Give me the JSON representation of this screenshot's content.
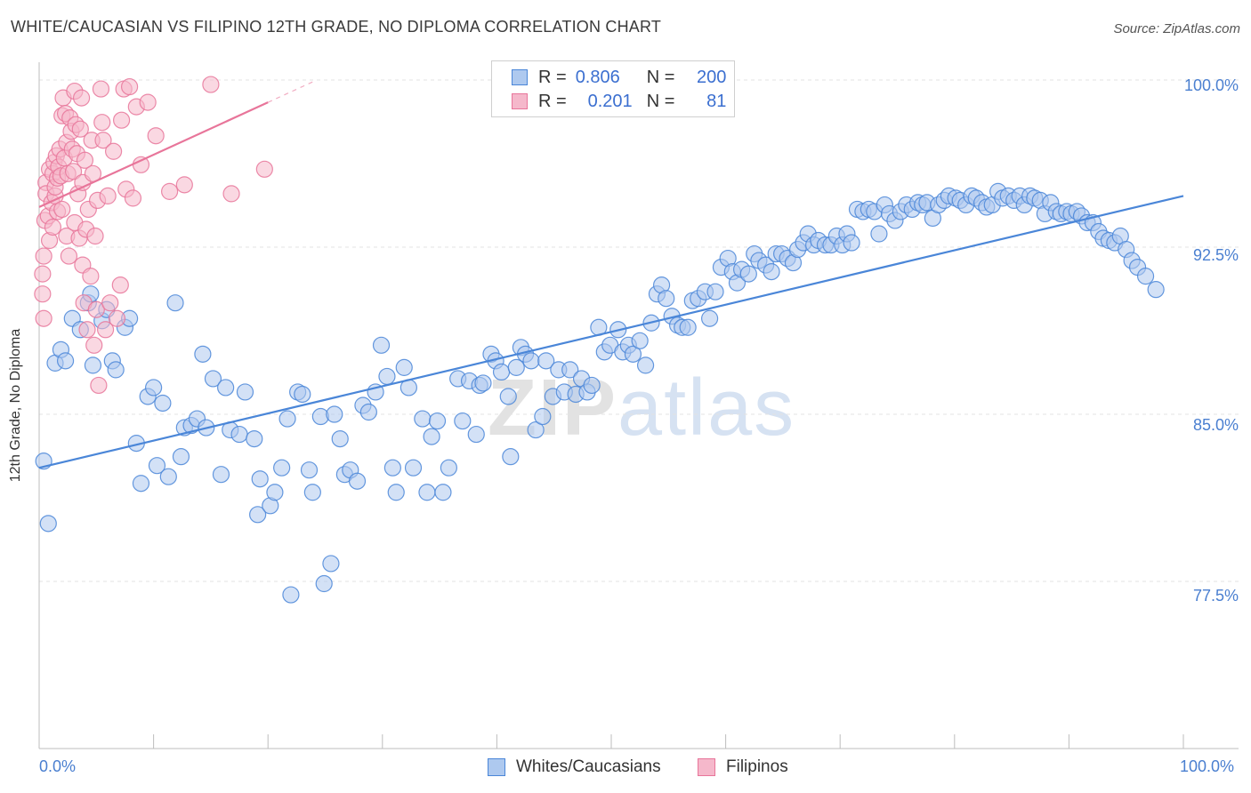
{
  "title": "WHITE/CAUCASIAN VS FILIPINO 12TH GRADE, NO DIPLOMA CORRELATION CHART",
  "source": "Source: ZipAtlas.com",
  "watermark": {
    "zip": "ZIP",
    "atlas": "atlas"
  },
  "legend": {
    "rows": [
      {
        "r_label": "R =",
        "r_value": "0.806",
        "n_label": "N =",
        "n_value": "200"
      },
      {
        "r_label": "R =",
        "r_value": "0.201",
        "n_label": "N =",
        "n_value": "81"
      }
    ]
  },
  "bottom_legend": {
    "white": "Whites/Caucasians",
    "filipino": "Filipinos"
  },
  "colors": {
    "blue": "#4a86d8",
    "blue_fill": "#aec9ef",
    "pink": "#e8759a",
    "pink_fill": "#f5b8cb",
    "grid": "#e3e3e3",
    "tick_text": "#4a7fd0"
  },
  "chart_data": {
    "type": "scatter",
    "title": "WHITE/CAUCASIAN VS FILIPINO 12TH GRADE, NO DIPLOMA CORRELATION CHART",
    "xlabel": "",
    "ylabel": "12th Grade, No Diploma",
    "xlim": [
      0,
      100
    ],
    "ylim": [
      70.0,
      100.8
    ],
    "x_tick_labels": [
      "0.0%",
      "100.0%"
    ],
    "y_ticks": [
      77.5,
      85.0,
      92.5,
      100.0
    ],
    "y_tick_labels": [
      "77.5%",
      "85.0%",
      "92.5%",
      "100.0%"
    ],
    "grid": true,
    "series": [
      {
        "name": "Whites/Caucasians",
        "color": "#4a86d8",
        "trend": {
          "x": [
            0,
            100
          ],
          "y": [
            82.6,
            94.8
          ]
        },
        "points": [
          [
            0.4,
            82.9
          ],
          [
            0.8,
            80.1
          ],
          [
            1.4,
            87.3
          ],
          [
            1.9,
            87.9
          ],
          [
            2.3,
            87.4
          ],
          [
            2.9,
            89.3
          ],
          [
            3.6,
            88.8
          ],
          [
            4.3,
            90.0
          ],
          [
            4.5,
            90.4
          ],
          [
            4.7,
            87.2
          ],
          [
            5.5,
            89.2
          ],
          [
            5.9,
            89.7
          ],
          [
            6.4,
            87.4
          ],
          [
            6.7,
            87.0
          ],
          [
            7.5,
            88.9
          ],
          [
            7.9,
            89.3
          ],
          [
            8.5,
            83.7
          ],
          [
            8.9,
            81.9
          ],
          [
            9.5,
            85.8
          ],
          [
            10.0,
            86.2
          ],
          [
            10.3,
            82.7
          ],
          [
            10.8,
            85.5
          ],
          [
            11.3,
            82.2
          ],
          [
            11.9,
            90.0
          ],
          [
            12.4,
            83.1
          ],
          [
            12.7,
            84.4
          ],
          [
            13.3,
            84.5
          ],
          [
            13.8,
            84.8
          ],
          [
            14.6,
            84.4
          ],
          [
            14.3,
            87.7
          ],
          [
            15.2,
            86.6
          ],
          [
            15.9,
            82.3
          ],
          [
            16.3,
            86.2
          ],
          [
            16.7,
            84.3
          ],
          [
            17.5,
            84.1
          ],
          [
            18.0,
            86.0
          ],
          [
            18.8,
            83.9
          ],
          [
            19.1,
            80.5
          ],
          [
            19.3,
            82.1
          ],
          [
            20.2,
            80.9
          ],
          [
            20.6,
            81.5
          ],
          [
            21.2,
            82.6
          ],
          [
            21.7,
            84.8
          ],
          [
            22.0,
            76.9
          ],
          [
            22.6,
            86.0
          ],
          [
            23.0,
            85.9
          ],
          [
            23.6,
            82.5
          ],
          [
            23.9,
            81.5
          ],
          [
            24.6,
            84.9
          ],
          [
            24.9,
            77.4
          ],
          [
            25.5,
            78.3
          ],
          [
            25.8,
            85.0
          ],
          [
            26.3,
            83.9
          ],
          [
            26.7,
            82.3
          ],
          [
            27.2,
            82.5
          ],
          [
            27.8,
            82.0
          ],
          [
            28.3,
            85.4
          ],
          [
            28.8,
            85.1
          ],
          [
            29.4,
            86.0
          ],
          [
            29.9,
            88.1
          ],
          [
            30.4,
            86.7
          ],
          [
            30.9,
            82.6
          ],
          [
            31.2,
            81.5
          ],
          [
            31.9,
            87.1
          ],
          [
            32.3,
            86.2
          ],
          [
            32.7,
            82.6
          ],
          [
            33.5,
            84.8
          ],
          [
            33.9,
            81.5
          ],
          [
            34.3,
            84.0
          ],
          [
            34.8,
            84.7
          ],
          [
            35.3,
            81.5
          ],
          [
            35.8,
            82.6
          ],
          [
            36.6,
            86.6
          ],
          [
            37.0,
            84.7
          ],
          [
            37.6,
            86.5
          ],
          [
            38.2,
            84.1
          ],
          [
            38.5,
            86.3
          ],
          [
            38.8,
            86.4
          ],
          [
            39.5,
            87.7
          ],
          [
            39.9,
            87.4
          ],
          [
            40.4,
            86.9
          ],
          [
            41.0,
            85.8
          ],
          [
            41.2,
            83.1
          ],
          [
            41.7,
            87.1
          ],
          [
            42.1,
            88.0
          ],
          [
            42.5,
            87.7
          ],
          [
            43.0,
            87.4
          ],
          [
            43.4,
            84.3
          ],
          [
            44.0,
            84.9
          ],
          [
            44.3,
            87.4
          ],
          [
            44.9,
            85.8
          ],
          [
            45.4,
            87.0
          ],
          [
            45.9,
            86.0
          ],
          [
            46.4,
            87.0
          ],
          [
            46.9,
            85.9
          ],
          [
            47.4,
            86.6
          ],
          [
            47.9,
            86.0
          ],
          [
            48.3,
            86.3
          ],
          [
            48.9,
            88.9
          ],
          [
            49.4,
            87.8
          ],
          [
            49.9,
            88.1
          ],
          [
            50.6,
            88.8
          ],
          [
            51.0,
            87.8
          ],
          [
            51.5,
            88.1
          ],
          [
            51.9,
            87.7
          ],
          [
            52.5,
            88.3
          ],
          [
            53.0,
            87.2
          ],
          [
            53.5,
            89.1
          ],
          [
            54.0,
            90.4
          ],
          [
            54.4,
            90.8
          ],
          [
            54.8,
            90.2
          ],
          [
            55.3,
            89.4
          ],
          [
            55.8,
            89.0
          ],
          [
            56.2,
            88.9
          ],
          [
            56.7,
            88.9
          ],
          [
            57.1,
            90.1
          ],
          [
            57.6,
            90.2
          ],
          [
            58.2,
            90.5
          ],
          [
            58.6,
            89.3
          ],
          [
            59.1,
            90.5
          ],
          [
            59.6,
            91.6
          ],
          [
            60.2,
            92.0
          ],
          [
            60.6,
            91.4
          ],
          [
            61.0,
            90.9
          ],
          [
            61.4,
            91.5
          ],
          [
            62.0,
            91.3
          ],
          [
            62.5,
            92.2
          ],
          [
            62.9,
            91.9
          ],
          [
            63.5,
            91.7
          ],
          [
            64.0,
            91.4
          ],
          [
            64.4,
            92.2
          ],
          [
            64.9,
            92.2
          ],
          [
            65.4,
            92.0
          ],
          [
            65.9,
            91.8
          ],
          [
            66.3,
            92.4
          ],
          [
            66.8,
            92.7
          ],
          [
            67.2,
            93.1
          ],
          [
            67.7,
            92.6
          ],
          [
            68.1,
            92.8
          ],
          [
            68.7,
            92.6
          ],
          [
            69.2,
            92.6
          ],
          [
            69.7,
            93.0
          ],
          [
            70.2,
            92.6
          ],
          [
            70.6,
            93.1
          ],
          [
            71.0,
            92.7
          ],
          [
            71.5,
            94.2
          ],
          [
            72.0,
            94.1
          ],
          [
            72.5,
            94.2
          ],
          [
            73.0,
            94.1
          ],
          [
            73.4,
            93.1
          ],
          [
            73.9,
            94.4
          ],
          [
            74.3,
            94.0
          ],
          [
            74.8,
            93.7
          ],
          [
            75.3,
            94.1
          ],
          [
            75.8,
            94.4
          ],
          [
            76.3,
            94.2
          ],
          [
            76.8,
            94.5
          ],
          [
            77.2,
            94.4
          ],
          [
            77.6,
            94.5
          ],
          [
            78.1,
            93.8
          ],
          [
            78.6,
            94.4
          ],
          [
            79.1,
            94.6
          ],
          [
            79.5,
            94.8
          ],
          [
            80.1,
            94.7
          ],
          [
            80.5,
            94.6
          ],
          [
            81.0,
            94.4
          ],
          [
            81.5,
            94.8
          ],
          [
            81.9,
            94.7
          ],
          [
            82.4,
            94.5
          ],
          [
            82.8,
            94.3
          ],
          [
            83.3,
            94.4
          ],
          [
            83.8,
            95.0
          ],
          [
            84.2,
            94.7
          ],
          [
            84.7,
            94.8
          ],
          [
            85.2,
            94.6
          ],
          [
            85.7,
            94.8
          ],
          [
            86.1,
            94.4
          ],
          [
            86.6,
            94.8
          ],
          [
            87.0,
            94.7
          ],
          [
            87.5,
            94.6
          ],
          [
            87.9,
            94.0
          ],
          [
            88.4,
            94.5
          ],
          [
            88.9,
            94.1
          ],
          [
            89.3,
            94.0
          ],
          [
            89.8,
            94.1
          ],
          [
            90.2,
            94.0
          ],
          [
            90.7,
            94.1
          ],
          [
            91.1,
            93.9
          ],
          [
            91.6,
            93.6
          ],
          [
            92.1,
            93.6
          ],
          [
            92.6,
            93.2
          ],
          [
            93.0,
            92.9
          ],
          [
            93.5,
            92.8
          ],
          [
            94.0,
            92.7
          ],
          [
            94.5,
            93.0
          ],
          [
            95.0,
            92.4
          ],
          [
            95.5,
            91.9
          ],
          [
            96.0,
            91.6
          ],
          [
            96.7,
            91.2
          ],
          [
            97.6,
            90.6
          ]
        ]
      },
      {
        "name": "Filipinos",
        "color": "#e8759a",
        "trend": {
          "x": [
            0,
            20
          ],
          "y": [
            94.3,
            99.0
          ]
        },
        "points": [
          [
            0.3,
            90.4
          ],
          [
            0.3,
            91.3
          ],
          [
            0.4,
            89.3
          ],
          [
            0.4,
            92.1
          ],
          [
            0.5,
            93.7
          ],
          [
            0.6,
            95.4
          ],
          [
            0.6,
            94.9
          ],
          [
            0.8,
            93.9
          ],
          [
            0.9,
            96.0
          ],
          [
            0.9,
            92.8
          ],
          [
            1.1,
            94.5
          ],
          [
            1.2,
            93.4
          ],
          [
            1.2,
            95.8
          ],
          [
            1.3,
            96.3
          ],
          [
            1.4,
            94.8
          ],
          [
            1.4,
            95.2
          ],
          [
            1.5,
            96.6
          ],
          [
            1.6,
            94.1
          ],
          [
            1.6,
            95.6
          ],
          [
            1.7,
            96.1
          ],
          [
            1.8,
            96.9
          ],
          [
            1.9,
            95.7
          ],
          [
            2.0,
            94.2
          ],
          [
            2.0,
            98.4
          ],
          [
            2.1,
            99.2
          ],
          [
            2.2,
            96.5
          ],
          [
            2.3,
            98.5
          ],
          [
            2.4,
            93.0
          ],
          [
            2.4,
            97.2
          ],
          [
            2.5,
            95.8
          ],
          [
            2.6,
            92.1
          ],
          [
            2.7,
            98.3
          ],
          [
            2.8,
            97.7
          ],
          [
            2.9,
            96.9
          ],
          [
            3.0,
            95.9
          ],
          [
            3.1,
            93.6
          ],
          [
            3.1,
            99.5
          ],
          [
            3.2,
            98.0
          ],
          [
            3.3,
            96.7
          ],
          [
            3.4,
            94.9
          ],
          [
            3.5,
            92.9
          ],
          [
            3.6,
            97.8
          ],
          [
            3.7,
            99.2
          ],
          [
            3.8,
            95.4
          ],
          [
            3.8,
            91.7
          ],
          [
            3.9,
            90.0
          ],
          [
            4.0,
            96.4
          ],
          [
            4.1,
            93.3
          ],
          [
            4.2,
            88.8
          ],
          [
            4.3,
            94.2
          ],
          [
            4.5,
            91.2
          ],
          [
            4.6,
            97.3
          ],
          [
            4.7,
            95.8
          ],
          [
            4.8,
            88.1
          ],
          [
            4.9,
            93.0
          ],
          [
            5.0,
            89.7
          ],
          [
            5.1,
            94.6
          ],
          [
            5.2,
            86.3
          ],
          [
            5.4,
            99.6
          ],
          [
            5.5,
            98.1
          ],
          [
            5.6,
            97.3
          ],
          [
            5.8,
            88.8
          ],
          [
            6.0,
            94.8
          ],
          [
            6.2,
            90.0
          ],
          [
            6.5,
            96.8
          ],
          [
            6.8,
            89.3
          ],
          [
            7.1,
            90.8
          ],
          [
            7.2,
            98.2
          ],
          [
            7.4,
            99.6
          ],
          [
            7.6,
            95.1
          ],
          [
            7.9,
            99.7
          ],
          [
            8.2,
            94.7
          ],
          [
            8.5,
            98.8
          ],
          [
            8.9,
            96.2
          ],
          [
            9.5,
            99.0
          ],
          [
            10.2,
            97.5
          ],
          [
            11.4,
            95.0
          ],
          [
            12.7,
            95.3
          ],
          [
            15.0,
            99.8
          ],
          [
            16.8,
            94.9
          ],
          [
            19.7,
            96.0
          ]
        ]
      }
    ]
  }
}
